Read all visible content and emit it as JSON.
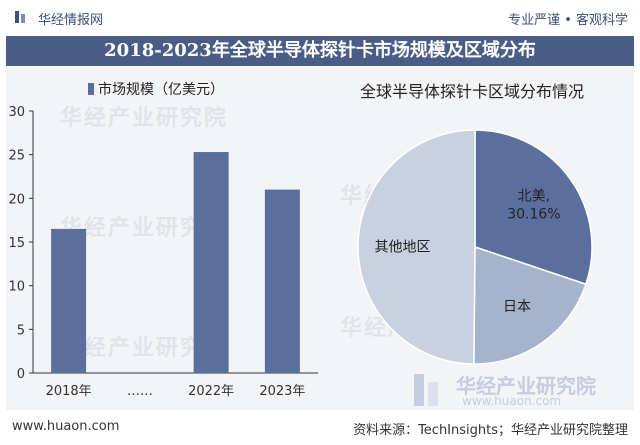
{
  "header": {
    "site_name": "华经情报网",
    "slogan": "专业严谨 • 客观科学",
    "title": "2018-2023年全球半导体探针卡市场规模及区域分布"
  },
  "chart_data": [
    {
      "type": "bar",
      "legend": [
        "市场规模（亿美元）"
      ],
      "categories": [
        "2018年",
        "……",
        "2022年",
        "2023年"
      ],
      "values": [
        16.5,
        null,
        25.3,
        21.0
      ],
      "ylim": [
        0,
        30
      ],
      "yticks": [
        0,
        5,
        10,
        15,
        20,
        25,
        30
      ],
      "color": "#5b6f9e",
      "grid": false
    },
    {
      "type": "pie",
      "title": "全球半导体探针卡区域分布情况",
      "slices": [
        {
          "label": "北美",
          "value": 30.16,
          "value_label": "30.16%",
          "color": "#5b6f9e"
        },
        {
          "label": "日本",
          "value": 20.0,
          "value_label": "",
          "color": "#a6b3cc"
        },
        {
          "label": "其他地区",
          "value": 49.84,
          "value_label": "",
          "color": "#c9d0df"
        }
      ]
    }
  ],
  "watermark": {
    "text": "华经产业研究院",
    "brand_cn": "华经产业研究院",
    "brand_en": "www.huaon.com"
  },
  "footer": {
    "website": "www.huaon.com",
    "source": "资料来源：TechInsights；华经产业研究院整理"
  }
}
